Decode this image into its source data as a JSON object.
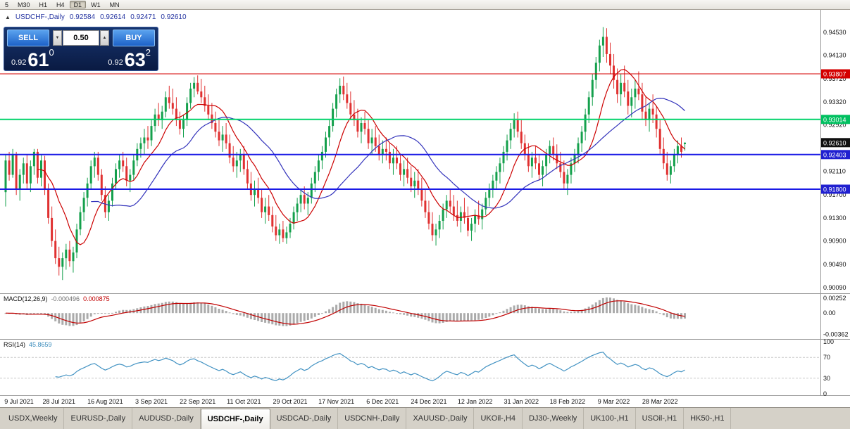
{
  "toolbar": {
    "timeframes": [
      {
        "label": "5",
        "active": false
      },
      {
        "label": "M30",
        "active": false
      },
      {
        "label": "H1",
        "active": false
      },
      {
        "label": "H4",
        "active": false
      },
      {
        "label": "D1",
        "active": true
      },
      {
        "label": "W1",
        "active": false
      },
      {
        "label": "MN",
        "active": false
      }
    ]
  },
  "icons": {
    "collapse": "▲",
    "spin_up": "▲",
    "spin_down": "▼"
  },
  "quote_header": {
    "symbol_label": "USDCHF-,Daily",
    "open": "0.92584",
    "high": "0.92614",
    "low": "0.92471",
    "close": "0.92610"
  },
  "trade_panel": {
    "sell_label": "SELL",
    "buy_label": "BUY",
    "volume": "0.50",
    "bid": {
      "small": "0.92",
      "big": "61",
      "sup": "0"
    },
    "ask": {
      "small": "0.92",
      "big": "63",
      "sup": "2"
    }
  },
  "price_scale": {
    "labels": [
      "0.94530",
      "0.94130",
      "0.93720",
      "0.93320",
      "0.92920",
      "0.92110",
      "0.91700",
      "0.91300",
      "0.90900",
      "0.90490",
      "0.90090"
    ],
    "tags": [
      {
        "text": "0.93807",
        "color": "#d40000"
      },
      {
        "text": "0.93014",
        "color": "#00c060"
      },
      {
        "text": "0.92610",
        "color": "#101010"
      },
      {
        "text": "0.92403",
        "color": "#2020d0"
      },
      {
        "text": "0.91800",
        "color": "#2020d0"
      }
    ]
  },
  "macd_panel": {
    "title": "MACD(12,26,9)",
    "value_main": "-0.000496",
    "value_signal": "0.000875",
    "scale_labels": [
      "0.00252",
      "0.00",
      "-0.00362"
    ],
    "ylim": [
      -0.00405,
      0.0029
    ],
    "colors": {
      "histogram": "#ababab",
      "signal": "#c00000"
    }
  },
  "rsi_panel": {
    "title": "RSI(14)",
    "value": "45.8659",
    "scale_labels": [
      100,
      70,
      30,
      0
    ],
    "levels": [
      70,
      30
    ],
    "color": "#4393c3"
  },
  "tabs": {
    "active_index": 3,
    "items": [
      "USDX,Weekly",
      "EURUSD-,Daily",
      "AUDUSD-,Daily",
      "USDCHF-,Daily",
      "USDCAD-,Daily",
      "USDCNH-,Daily",
      "XAUUSD-,Daily",
      "UKOil-,H4",
      "DJ30-,Weekly",
      "UK100-,H1",
      "USOil-,H1",
      "HK50-,H1"
    ]
  },
  "chart_data": {
    "type": "candlestick",
    "symbol": "USDCHF",
    "timeframe": "Daily",
    "ylim": [
      0.8999,
      0.9492
    ],
    "colors": {
      "up": "#14a04c",
      "down": "#e03131"
    },
    "levels": [
      {
        "price": 0.93807,
        "color": "#d40000",
        "width": 1
      },
      {
        "price": 0.93014,
        "color": "#00d26a",
        "width": 2
      },
      {
        "price": 0.92403,
        "color": "#1a1ae6",
        "width": 2
      },
      {
        "price": 0.918,
        "color": "#1a1ae6",
        "width": 2
      }
    ],
    "overlays": [
      {
        "type": "sma",
        "period": 10,
        "color": "#cc0000"
      },
      {
        "type": "sma",
        "period": 25,
        "color": "#3333bb"
      }
    ],
    "x_labels": [
      {
        "label": "9 Jul 2021",
        "i": 2
      },
      {
        "label": "28 Jul 2021",
        "i": 15
      },
      {
        "label": "16 Aug 2021",
        "i": 28
      },
      {
        "label": "3 Sep 2021",
        "i": 41
      },
      {
        "label": "22 Sep 2021",
        "i": 54
      },
      {
        "label": "11 Oct 2021",
        "i": 67
      },
      {
        "label": "29 Oct 2021",
        "i": 80
      },
      {
        "label": "17 Nov 2021",
        "i": 93
      },
      {
        "label": "6 Dec 2021",
        "i": 106
      },
      {
        "label": "24 Dec 2021",
        "i": 119
      },
      {
        "label": "12 Jan 2022",
        "i": 132
      },
      {
        "label": "31 Jan 2022",
        "i": 145
      },
      {
        "label": "18 Feb 2022",
        "i": 158
      },
      {
        "label": "9 Mar 2022",
        "i": 171
      },
      {
        "label": "28 Mar 2022",
        "i": 184
      }
    ],
    "candles": [
      [
        0.9175,
        0.924,
        0.915,
        0.923
      ],
      [
        0.923,
        0.9245,
        0.9195,
        0.9205
      ],
      [
        0.9205,
        0.925,
        0.92,
        0.924
      ],
      [
        0.924,
        0.9245,
        0.917,
        0.918
      ],
      [
        0.918,
        0.9215,
        0.916,
        0.9205
      ],
      [
        0.9205,
        0.9235,
        0.919,
        0.9225
      ],
      [
        0.9225,
        0.924,
        0.918,
        0.919
      ],
      [
        0.919,
        0.923,
        0.9175,
        0.922
      ],
      [
        0.922,
        0.925,
        0.9205,
        0.9245
      ],
      [
        0.9245,
        0.925,
        0.919,
        0.92
      ],
      [
        0.92,
        0.924,
        0.9185,
        0.923
      ],
      [
        0.923,
        0.9238,
        0.917,
        0.918
      ],
      [
        0.918,
        0.919,
        0.912,
        0.913
      ],
      [
        0.913,
        0.915,
        0.908,
        0.909
      ],
      [
        0.909,
        0.911,
        0.905,
        0.906
      ],
      [
        0.906,
        0.908,
        0.903,
        0.9045
      ],
      [
        0.9045,
        0.907,
        0.9022,
        0.906
      ],
      [
        0.906,
        0.9085,
        0.904,
        0.9075
      ],
      [
        0.9075,
        0.909,
        0.9045,
        0.9055
      ],
      [
        0.9055,
        0.908,
        0.9035,
        0.907
      ],
      [
        0.907,
        0.912,
        0.906,
        0.911
      ],
      [
        0.911,
        0.915,
        0.91,
        0.914
      ],
      [
        0.914,
        0.9175,
        0.9125,
        0.9165
      ],
      [
        0.9165,
        0.92,
        0.915,
        0.919
      ],
      [
        0.919,
        0.923,
        0.918,
        0.922
      ],
      [
        0.922,
        0.9245,
        0.92,
        0.9235
      ],
      [
        0.9235,
        0.9245,
        0.9195,
        0.9205
      ],
      [
        0.9205,
        0.9215,
        0.916,
        0.917
      ],
      [
        0.917,
        0.9185,
        0.913,
        0.914
      ],
      [
        0.914,
        0.917,
        0.9125,
        0.916
      ],
      [
        0.916,
        0.92,
        0.915,
        0.919
      ],
      [
        0.919,
        0.9225,
        0.918,
        0.9215
      ],
      [
        0.9215,
        0.924,
        0.92,
        0.923
      ],
      [
        0.923,
        0.9245,
        0.921,
        0.922
      ],
      [
        0.922,
        0.9235,
        0.9185,
        0.9195
      ],
      [
        0.9195,
        0.9215,
        0.9175,
        0.9205
      ],
      [
        0.9205,
        0.924,
        0.9195,
        0.923
      ],
      [
        0.923,
        0.926,
        0.922,
        0.925
      ],
      [
        0.925,
        0.927,
        0.9235,
        0.926
      ],
      [
        0.926,
        0.9285,
        0.924,
        0.927
      ],
      [
        0.927,
        0.929,
        0.925,
        0.9265
      ],
      [
        0.9265,
        0.93,
        0.9255,
        0.929
      ],
      [
        0.929,
        0.932,
        0.928,
        0.931
      ],
      [
        0.931,
        0.933,
        0.929,
        0.93
      ],
      [
        0.93,
        0.9325,
        0.9285,
        0.9315
      ],
      [
        0.9315,
        0.935,
        0.9305,
        0.934
      ],
      [
        0.934,
        0.936,
        0.932,
        0.933
      ],
      [
        0.933,
        0.9355,
        0.931,
        0.932
      ],
      [
        0.932,
        0.934,
        0.929,
        0.93
      ],
      [
        0.93,
        0.9315,
        0.9275,
        0.9285
      ],
      [
        0.9285,
        0.931,
        0.927,
        0.93
      ],
      [
        0.93,
        0.934,
        0.929,
        0.933
      ],
      [
        0.933,
        0.9365,
        0.932,
        0.9355
      ],
      [
        0.9355,
        0.9375,
        0.934,
        0.9365
      ],
      [
        0.9365,
        0.9378,
        0.9345,
        0.935
      ],
      [
        0.935,
        0.9372,
        0.933,
        0.934
      ],
      [
        0.934,
        0.936,
        0.9315,
        0.9325
      ],
      [
        0.9325,
        0.9345,
        0.93,
        0.931
      ],
      [
        0.931,
        0.933,
        0.9285,
        0.9295
      ],
      [
        0.9295,
        0.9315,
        0.927,
        0.928
      ],
      [
        0.928,
        0.93,
        0.9255,
        0.9265
      ],
      [
        0.9265,
        0.929,
        0.9245,
        0.9275
      ],
      [
        0.9275,
        0.9295,
        0.925,
        0.926
      ],
      [
        0.926,
        0.9275,
        0.9225,
        0.9235
      ],
      [
        0.9235,
        0.9255,
        0.921,
        0.922
      ],
      [
        0.922,
        0.9245,
        0.92,
        0.923
      ],
      [
        0.923,
        0.925,
        0.921,
        0.924
      ],
      [
        0.924,
        0.9255,
        0.9205,
        0.9215
      ],
      [
        0.9215,
        0.923,
        0.918,
        0.919
      ],
      [
        0.919,
        0.921,
        0.916,
        0.917
      ],
      [
        0.917,
        0.9195,
        0.915,
        0.918
      ],
      [
        0.918,
        0.92,
        0.9155,
        0.9165
      ],
      [
        0.9165,
        0.918,
        0.913,
        0.914
      ],
      [
        0.914,
        0.9165,
        0.912,
        0.915
      ],
      [
        0.915,
        0.917,
        0.9125,
        0.9135
      ],
      [
        0.9135,
        0.915,
        0.9105,
        0.9115
      ],
      [
        0.9115,
        0.9135,
        0.909,
        0.91
      ],
      [
        0.91,
        0.912,
        0.9085,
        0.911
      ],
      [
        0.911,
        0.9125,
        0.9088,
        0.9095
      ],
      [
        0.9095,
        0.9115,
        0.9085,
        0.9105
      ],
      [
        0.9105,
        0.913,
        0.9095,
        0.912
      ],
      [
        0.912,
        0.915,
        0.911,
        0.914
      ],
      [
        0.914,
        0.9165,
        0.9125,
        0.9155
      ],
      [
        0.9155,
        0.918,
        0.914,
        0.917
      ],
      [
        0.917,
        0.9185,
        0.9145,
        0.9155
      ],
      [
        0.9155,
        0.9175,
        0.9135,
        0.9165
      ],
      [
        0.9165,
        0.92,
        0.9155,
        0.919
      ],
      [
        0.919,
        0.922,
        0.9175,
        0.921
      ],
      [
        0.921,
        0.924,
        0.9195,
        0.923
      ],
      [
        0.923,
        0.9255,
        0.9215,
        0.9245
      ],
      [
        0.9245,
        0.928,
        0.9235,
        0.927
      ],
      [
        0.927,
        0.93,
        0.9255,
        0.929
      ],
      [
        0.929,
        0.933,
        0.928,
        0.932
      ],
      [
        0.932,
        0.9355,
        0.9305,
        0.9345
      ],
      [
        0.9345,
        0.9373,
        0.933,
        0.936
      ],
      [
        0.936,
        0.9376,
        0.9335,
        0.9345
      ],
      [
        0.9345,
        0.9365,
        0.932,
        0.933
      ],
      [
        0.933,
        0.935,
        0.93,
        0.931
      ],
      [
        0.931,
        0.9335,
        0.929,
        0.93
      ],
      [
        0.93,
        0.932,
        0.927,
        0.928
      ],
      [
        0.928,
        0.9305,
        0.926,
        0.9295
      ],
      [
        0.9295,
        0.9315,
        0.9275,
        0.9285
      ],
      [
        0.9285,
        0.93,
        0.925,
        0.926
      ],
      [
        0.926,
        0.9285,
        0.924,
        0.927
      ],
      [
        0.927,
        0.929,
        0.9245,
        0.9255
      ],
      [
        0.9255,
        0.9275,
        0.923,
        0.924
      ],
      [
        0.924,
        0.9265,
        0.9225,
        0.925
      ],
      [
        0.925,
        0.927,
        0.923,
        0.9245
      ],
      [
        0.9245,
        0.926,
        0.9215,
        0.9225
      ],
      [
        0.9225,
        0.925,
        0.9205,
        0.9235
      ],
      [
        0.9235,
        0.9255,
        0.9215,
        0.9225
      ],
      [
        0.9225,
        0.924,
        0.9195,
        0.9205
      ],
      [
        0.9205,
        0.923,
        0.9185,
        0.9215
      ],
      [
        0.9215,
        0.9235,
        0.919,
        0.92
      ],
      [
        0.92,
        0.922,
        0.9175,
        0.9185
      ],
      [
        0.9185,
        0.921,
        0.9165,
        0.9195
      ],
      [
        0.9195,
        0.9215,
        0.917,
        0.918
      ],
      [
        0.918,
        0.92,
        0.915,
        0.916
      ],
      [
        0.916,
        0.918,
        0.913,
        0.914
      ],
      [
        0.914,
        0.916,
        0.911,
        0.912
      ],
      [
        0.912,
        0.914,
        0.909,
        0.91
      ],
      [
        0.91,
        0.912,
        0.9082,
        0.911
      ],
      [
        0.911,
        0.9135,
        0.9095,
        0.9125
      ],
      [
        0.9125,
        0.9155,
        0.911,
        0.9145
      ],
      [
        0.9145,
        0.917,
        0.913,
        0.916
      ],
      [
        0.916,
        0.918,
        0.914,
        0.915
      ],
      [
        0.915,
        0.917,
        0.9125,
        0.9135
      ],
      [
        0.9135,
        0.916,
        0.9115,
        0.9125
      ],
      [
        0.9125,
        0.915,
        0.9105,
        0.914
      ],
      [
        0.914,
        0.9165,
        0.912,
        0.913
      ],
      [
        0.913,
        0.915,
        0.9098,
        0.9108
      ],
      [
        0.9108,
        0.913,
        0.909,
        0.912
      ],
      [
        0.912,
        0.9145,
        0.9105,
        0.9135
      ],
      [
        0.9135,
        0.916,
        0.9118,
        0.9128
      ],
      [
        0.9128,
        0.9155,
        0.911,
        0.9145
      ],
      [
        0.9145,
        0.9175,
        0.9135,
        0.9165
      ],
      [
        0.9165,
        0.919,
        0.915,
        0.918
      ],
      [
        0.918,
        0.9205,
        0.9165,
        0.9195
      ],
      [
        0.9195,
        0.922,
        0.918,
        0.921
      ],
      [
        0.921,
        0.9235,
        0.919,
        0.9225
      ],
      [
        0.9225,
        0.9255,
        0.921,
        0.9245
      ],
      [
        0.9245,
        0.9275,
        0.923,
        0.9265
      ],
      [
        0.9265,
        0.9295,
        0.925,
        0.9285
      ],
      [
        0.9285,
        0.9312,
        0.927,
        0.93
      ],
      [
        0.93,
        0.9315,
        0.927,
        0.928
      ],
      [
        0.928,
        0.93,
        0.925,
        0.926
      ],
      [
        0.926,
        0.9275,
        0.923,
        0.924
      ],
      [
        0.924,
        0.926,
        0.921,
        0.922
      ],
      [
        0.922,
        0.9245,
        0.92,
        0.9235
      ],
      [
        0.9235,
        0.9255,
        0.9215,
        0.9225
      ],
      [
        0.9225,
        0.924,
        0.9195,
        0.9205
      ],
      [
        0.9205,
        0.923,
        0.9185,
        0.922
      ],
      [
        0.922,
        0.925,
        0.9205,
        0.924
      ],
      [
        0.924,
        0.9265,
        0.9225,
        0.9255
      ],
      [
        0.9255,
        0.927,
        0.923,
        0.924
      ],
      [
        0.924,
        0.9258,
        0.9215,
        0.9225
      ],
      [
        0.9225,
        0.9245,
        0.92,
        0.921
      ],
      [
        0.921,
        0.923,
        0.918,
        0.919
      ],
      [
        0.919,
        0.9215,
        0.917,
        0.9205
      ],
      [
        0.9205,
        0.9235,
        0.919,
        0.9225
      ],
      [
        0.9225,
        0.925,
        0.921,
        0.924
      ],
      [
        0.924,
        0.927,
        0.9225,
        0.926
      ],
      [
        0.926,
        0.929,
        0.9245,
        0.928
      ],
      [
        0.928,
        0.932,
        0.9265,
        0.931
      ],
      [
        0.931,
        0.935,
        0.9295,
        0.934
      ],
      [
        0.934,
        0.938,
        0.9325,
        0.937
      ],
      [
        0.937,
        0.941,
        0.9355,
        0.94
      ],
      [
        0.94,
        0.944,
        0.9385,
        0.943
      ],
      [
        0.943,
        0.9462,
        0.941,
        0.9445
      ],
      [
        0.9445,
        0.946,
        0.94,
        0.9415
      ],
      [
        0.9415,
        0.9435,
        0.938,
        0.9395
      ],
      [
        0.9395,
        0.9415,
        0.9355,
        0.937
      ],
      [
        0.937,
        0.939,
        0.933,
        0.9345
      ],
      [
        0.9345,
        0.938,
        0.9325,
        0.9365
      ],
      [
        0.9365,
        0.9395,
        0.934,
        0.935
      ],
      [
        0.935,
        0.937,
        0.931,
        0.9325
      ],
      [
        0.9325,
        0.9355,
        0.9305,
        0.934
      ],
      [
        0.934,
        0.937,
        0.932,
        0.9355
      ],
      [
        0.9355,
        0.9385,
        0.9335,
        0.9345
      ],
      [
        0.9345,
        0.9365,
        0.93,
        0.9315
      ],
      [
        0.9315,
        0.934,
        0.929,
        0.93
      ],
      [
        0.93,
        0.933,
        0.928,
        0.932
      ],
      [
        0.932,
        0.9345,
        0.9295,
        0.931
      ],
      [
        0.931,
        0.9325,
        0.927,
        0.9285
      ],
      [
        0.9285,
        0.93,
        0.924,
        0.925
      ],
      [
        0.925,
        0.927,
        0.9215,
        0.9225
      ],
      [
        0.9225,
        0.9245,
        0.9195,
        0.9205
      ],
      [
        0.9205,
        0.923,
        0.919,
        0.922
      ],
      [
        0.922,
        0.925,
        0.921,
        0.924
      ],
      [
        0.924,
        0.9265,
        0.9225,
        0.9255
      ],
      [
        0.9255,
        0.927,
        0.9235,
        0.9245
      ],
      [
        0.92584,
        0.92614,
        0.92471,
        0.9261
      ]
    ]
  }
}
